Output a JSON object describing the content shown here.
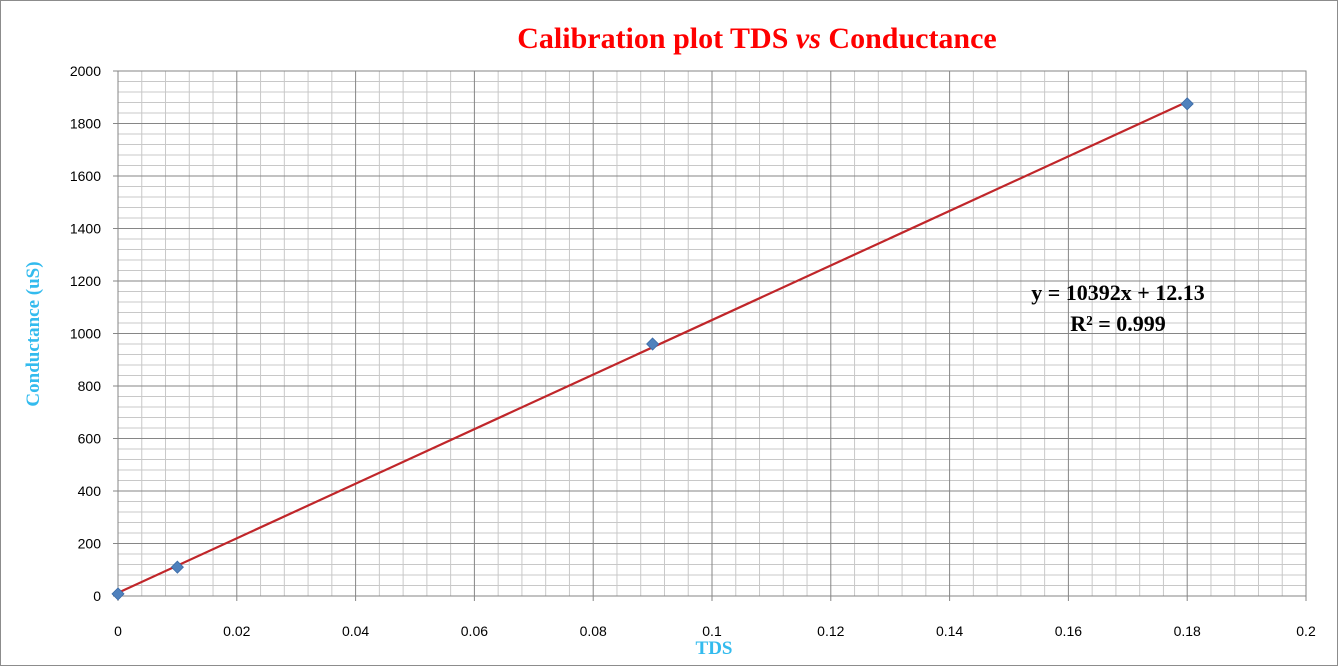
{
  "chart_data": {
    "type": "scatter",
    "title": {
      "before": "Calibration plot TDS ",
      "italic": "vs",
      "after": " Conductance"
    },
    "xlabel": "TDS",
    "ylabel": "Conductance (uS)",
    "xlim": [
      0,
      0.2
    ],
    "ylim": [
      0,
      2000
    ],
    "x_ticks": [
      "0",
      "0.02",
      "0.04",
      "0.06",
      "0.08",
      "0.1",
      "0.12",
      "0.14",
      "0.16",
      "0.18",
      "0.2"
    ],
    "y_ticks": [
      "0",
      "200",
      "400",
      "600",
      "800",
      "1000",
      "1200",
      "1400",
      "1600",
      "1800",
      "2000"
    ],
    "grid": true,
    "series": [
      {
        "x": [
          0,
          0.01,
          0.09,
          0.18
        ],
        "y": [
          8,
          110,
          960,
          1875
        ]
      }
    ],
    "trendline": {
      "type": "linear",
      "slope": 10392,
      "intercept": 12.13,
      "equation": "y = 10392x + 12.13",
      "r_squared": "R² = 0.999"
    },
    "colors": {
      "title": "#ff0000",
      "axis_titles": "#33bbee",
      "marker": "#4f81bd",
      "trendline": "#c0262a",
      "grid_major": "#868686",
      "grid_minor": "#c8c8c8"
    }
  }
}
